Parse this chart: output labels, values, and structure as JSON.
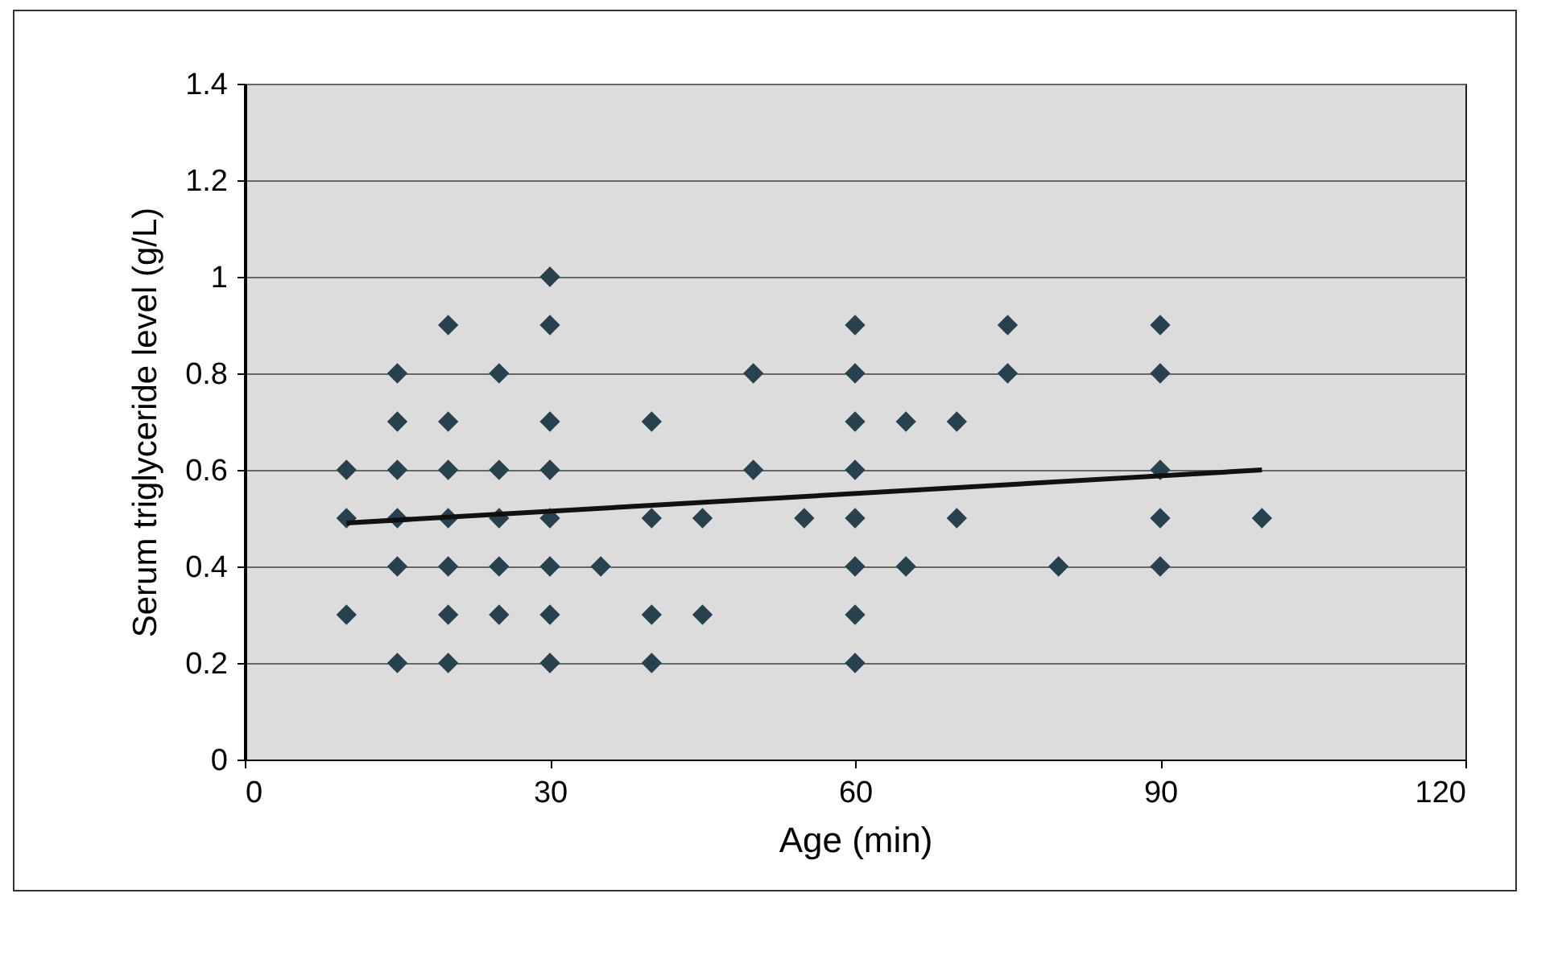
{
  "chart_data": {
    "type": "scatter",
    "xlabel": "Age (min)",
    "ylabel": "Serum triglyceride level (g/L)",
    "xlim": [
      0,
      120
    ],
    "xticks": [
      0,
      30,
      60,
      90,
      120
    ],
    "ylim": [
      0,
      1.4
    ],
    "yticks": [
      0,
      0.2,
      0.4,
      0.6,
      0.8,
      1,
      1.2,
      1.4
    ],
    "grid": "y",
    "series": [
      {
        "marker": "diamond",
        "color": "#27414f",
        "x": [
          10,
          10,
          10,
          15,
          15,
          15,
          15,
          15,
          15,
          20,
          20,
          20,
          20,
          20,
          20,
          20,
          25,
          25,
          25,
          25,
          25,
          30,
          30,
          30,
          30,
          30,
          30,
          30,
          30,
          35,
          40,
          40,
          40,
          40,
          45,
          45,
          50,
          50,
          55,
          60,
          60,
          60,
          60,
          60,
          60,
          60,
          60,
          65,
          65,
          70,
          70,
          75,
          75,
          80,
          90,
          90,
          90,
          90,
          90,
          100
        ],
        "values": [
          0.6,
          0.5,
          0.3,
          0.8,
          0.7,
          0.6,
          0.5,
          0.4,
          0.2,
          0.9,
          0.7,
          0.6,
          0.5,
          0.4,
          0.3,
          0.2,
          0.8,
          0.6,
          0.5,
          0.4,
          0.3,
          1,
          0.9,
          0.7,
          0.6,
          0.5,
          0.4,
          0.3,
          0.2,
          0.4,
          0.7,
          0.5,
          0.3,
          0.2,
          0.5,
          0.3,
          0.8,
          0.6,
          0.5,
          0.9,
          0.8,
          0.7,
          0.6,
          0.5,
          0.4,
          0.3,
          0.2,
          0.7,
          0.4,
          0.7,
          0.5,
          0.9,
          0.8,
          0.4,
          0.9,
          0.8,
          0.6,
          0.5,
          0.4,
          0.5
        ]
      },
      {
        "type": "line",
        "marker": "none",
        "color": "#111111",
        "x": [
          10,
          100
        ],
        "values": [
          0.49,
          0.6
        ]
      }
    ]
  }
}
